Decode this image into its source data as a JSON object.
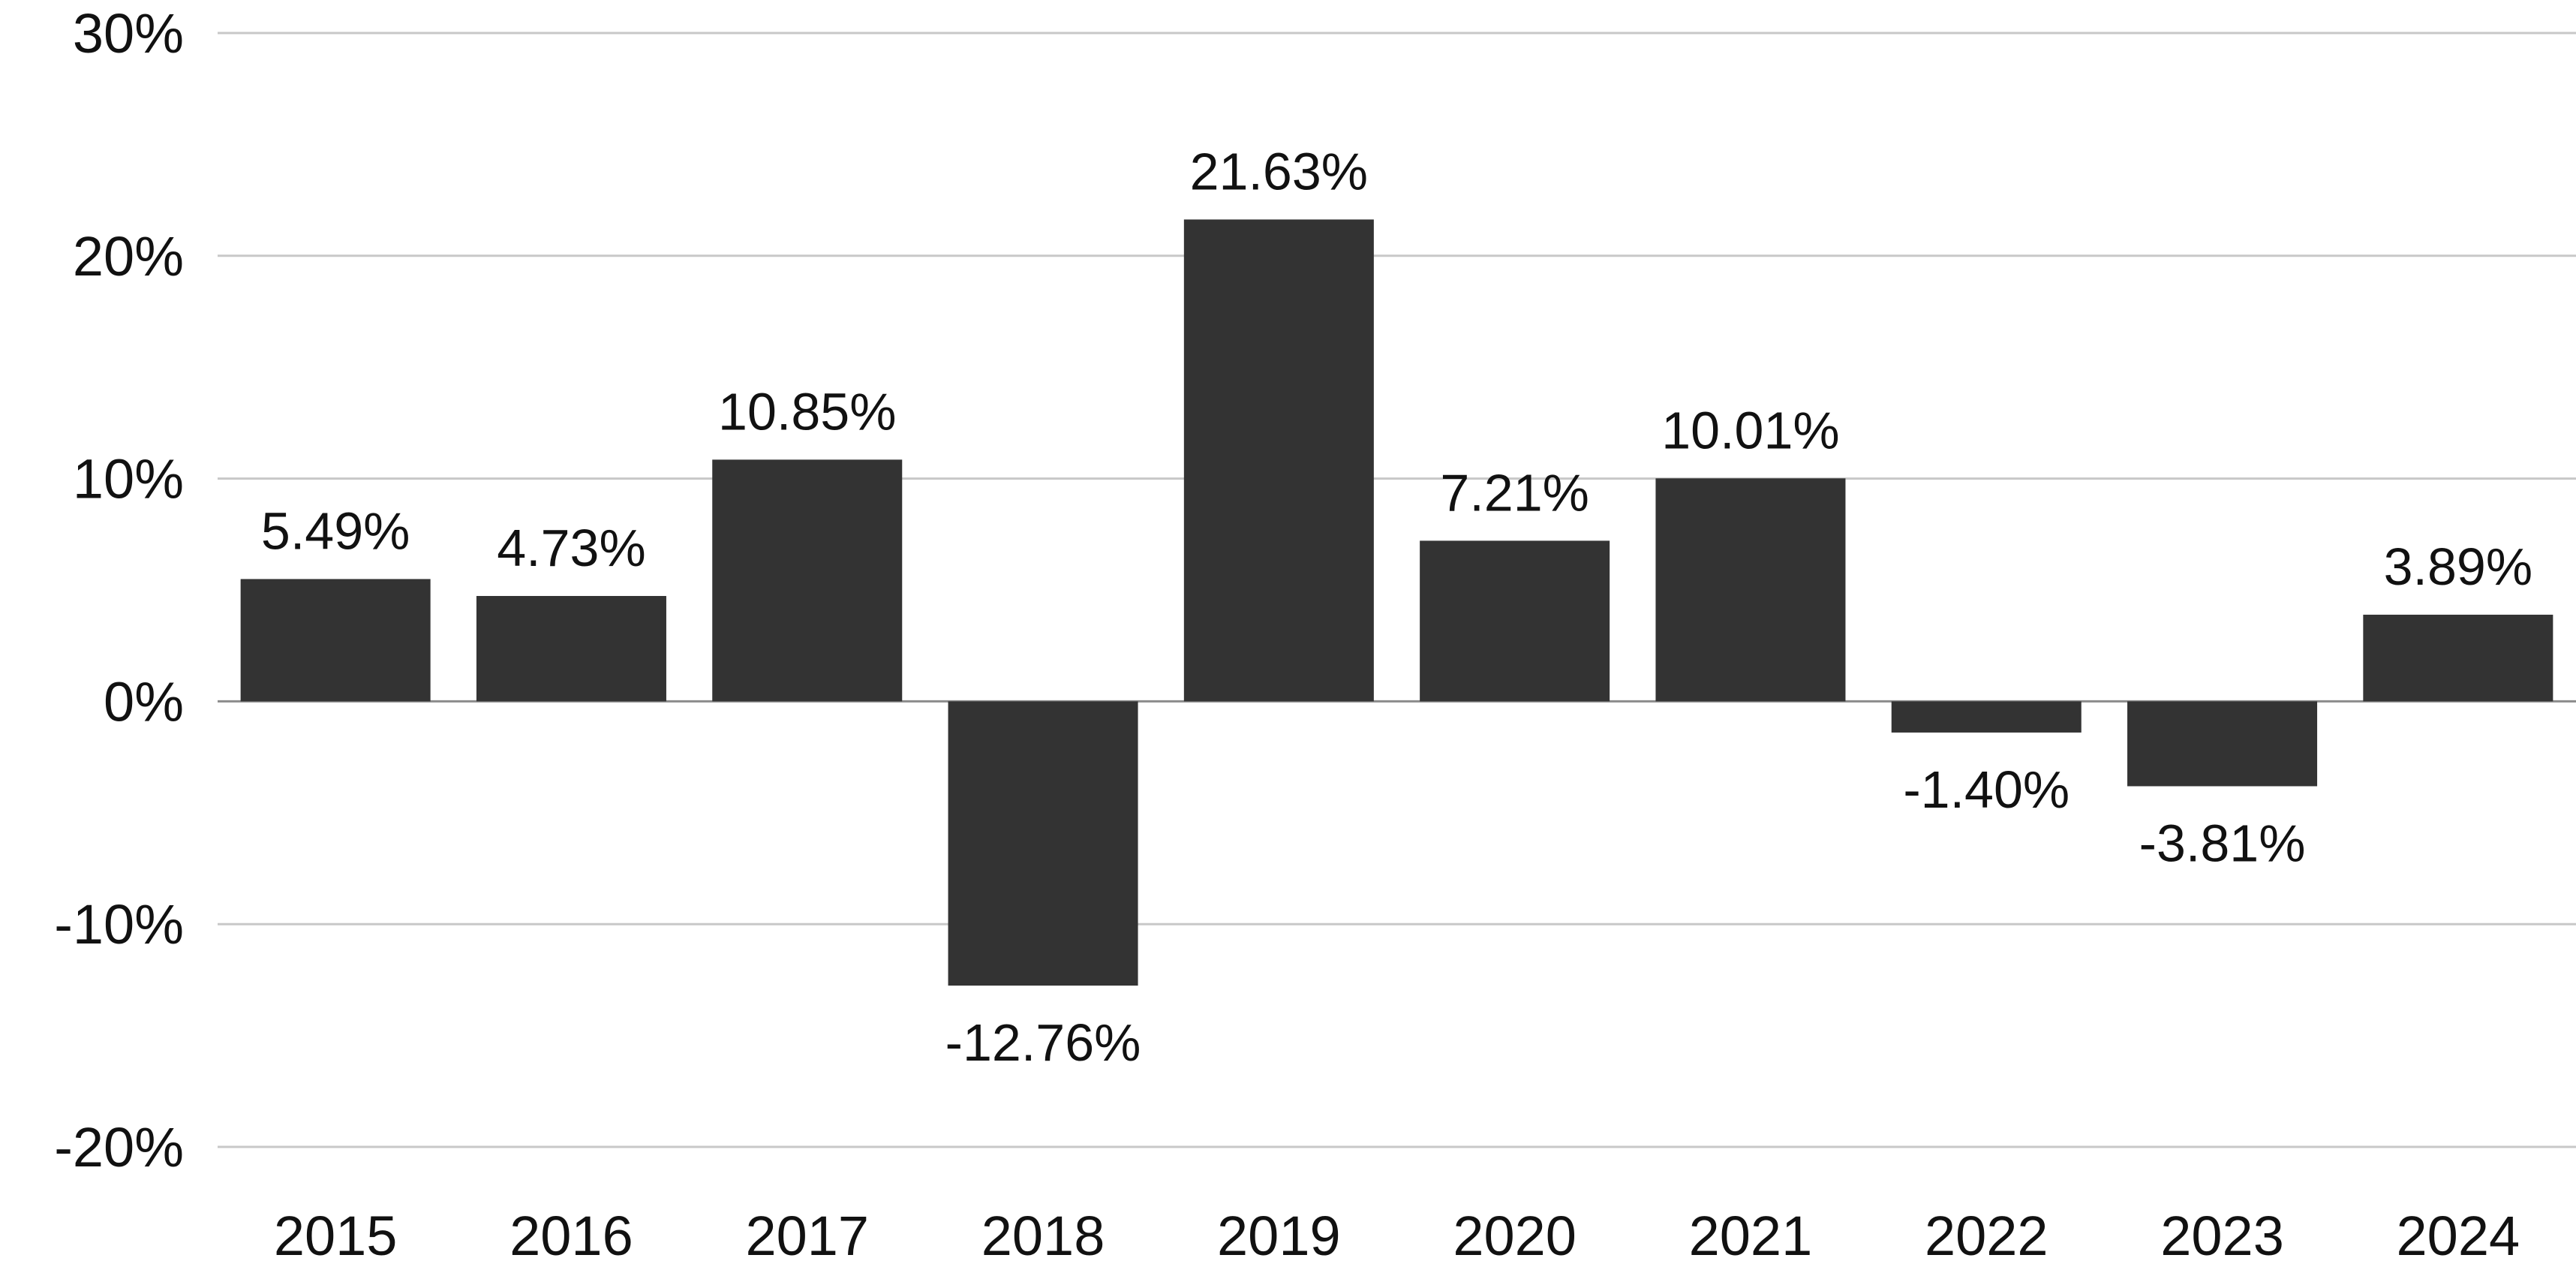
{
  "chart_data": {
    "type": "bar",
    "categories": [
      "2015",
      "2016",
      "2017",
      "2018",
      "2019",
      "2020",
      "2021",
      "2022",
      "2023",
      "2024"
    ],
    "values": [
      5.49,
      4.73,
      10.85,
      -12.76,
      21.63,
      7.21,
      10.01,
      -1.4,
      -3.81,
      3.89
    ],
    "data_labels": [
      "5.49%",
      "4.73%",
      "10.85%",
      "-12.76%",
      "21.63%",
      "7.21%",
      "10.01%",
      "-1.40%",
      "-3.81%",
      "3.89%"
    ],
    "y_ticks": [
      30,
      20,
      10,
      0,
      -10,
      -20
    ],
    "y_tick_labels": [
      "30%",
      "20%",
      "10%",
      "0%",
      "-10%",
      "-20%"
    ],
    "ylim": [
      -20,
      30
    ],
    "title": "",
    "xlabel": "",
    "ylabel": "",
    "grid": true,
    "legend": "none",
    "colors": {
      "bar": "#333333",
      "grid": "#c8c8c8",
      "zero_line": "#8c8c8c",
      "text": "#111111"
    }
  }
}
